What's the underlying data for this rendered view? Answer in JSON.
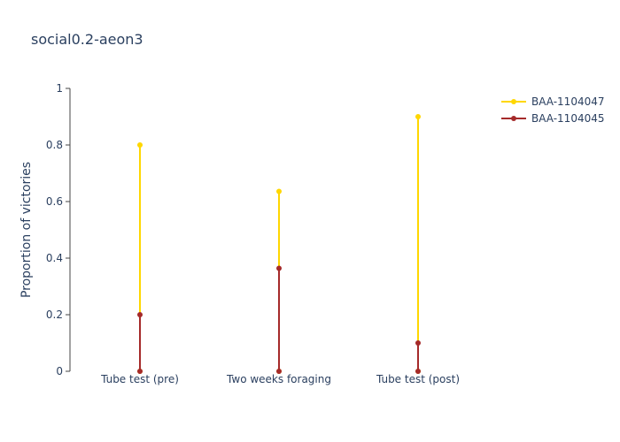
{
  "chart_data": {
    "type": "line",
    "title": "social0.2-aeon3",
    "xlabel": "",
    "ylabel": "Proportion of victories",
    "ylim": [
      0,
      1
    ],
    "yticks": [
      0,
      0.2,
      0.4,
      0.6,
      0.8,
      1
    ],
    "ytick_labels": [
      "0",
      "0.2",
      "0.4",
      "0.6",
      "0.8",
      "1"
    ],
    "categories": [
      "Tube test (pre)",
      "Two weeks foraging",
      "Tube test (post)"
    ],
    "grid": false,
    "legend_position": "top-right",
    "series": [
      {
        "name": "BAA-1104047",
        "color": "#ffd700",
        "values": [
          0.8,
          0.636,
          0.9
        ]
      },
      {
        "name": "BAA-1104045",
        "color": "#a52a2a",
        "values": [
          0.2,
          0.364,
          0.1
        ]
      }
    ]
  }
}
